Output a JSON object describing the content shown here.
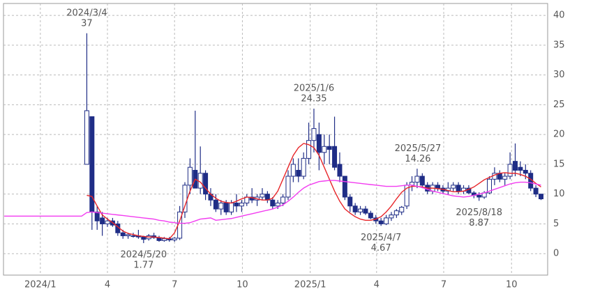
{
  "chart_data": {
    "type": "candlestick",
    "x": [
      "2023/11/13",
      "2023/11/20",
      "2023/11/27",
      "2023/12/4",
      "2023/12/11",
      "2023/12/18",
      "2023/12/25",
      "2024/1/1",
      "2024/1/8",
      "2024/1/15",
      "2024/1/22",
      "2024/1/29",
      "2024/2/5",
      "2024/2/12",
      "2024/2/19",
      "2024/2/26",
      "2024/3/4",
      "2024/3/11",
      "2024/3/18",
      "2024/3/25",
      "2024/4/1",
      "2024/4/8",
      "2024/4/15",
      "2024/4/22",
      "2024/4/29",
      "2024/5/6",
      "2024/5/13",
      "2024/5/20",
      "2024/5/27",
      "2024/6/3",
      "2024/6/10",
      "2024/6/17",
      "2024/6/24",
      "2024/7/1",
      "2024/7/8",
      "2024/7/15",
      "2024/7/22",
      "2024/7/29",
      "2024/8/5",
      "2024/8/12",
      "2024/8/19",
      "2024/8/26",
      "2024/9/2",
      "2024/9/9",
      "2024/9/16",
      "2024/9/23",
      "2024/9/30",
      "2024/10/7",
      "2024/10/14",
      "2024/10/21",
      "2024/10/28",
      "2024/11/4",
      "2024/11/11",
      "2024/11/18",
      "2024/11/25",
      "2024/12/2",
      "2024/12/9",
      "2024/12/16",
      "2024/12/23",
      "2024/12/30",
      "2025/1/6",
      "2025/1/13",
      "2025/1/20",
      "2025/1/27",
      "2025/2/3",
      "2025/2/10",
      "2025/2/17",
      "2025/2/24",
      "2025/3/3",
      "2025/3/10",
      "2025/3/17",
      "2025/3/24",
      "2025/3/31",
      "2025/4/7",
      "2025/4/14",
      "2025/4/21",
      "2025/4/28",
      "2025/5/5",
      "2025/5/12",
      "2025/5/19",
      "2025/5/26",
      "2025/6/2",
      "2025/6/9",
      "2025/6/16",
      "2025/6/23",
      "2025/6/30",
      "2025/7/7",
      "2025/7/14",
      "2025/7/21",
      "2025/7/28",
      "2025/8/4",
      "2025/8/11",
      "2025/8/18",
      "2025/8/25",
      "2025/9/1",
      "2025/9/8",
      "2025/9/15",
      "2025/9/22",
      "2025/9/29",
      "2025/10/6",
      "2025/10/13",
      "2025/10/20",
      "2025/10/27",
      "2025/11/3",
      "2025/11/10"
    ],
    "open": [
      null,
      null,
      null,
      null,
      null,
      null,
      null,
      null,
      null,
      null,
      null,
      null,
      null,
      null,
      null,
      null,
      15,
      23,
      7,
      6,
      5,
      5.5,
      5,
      3.5,
      3,
      3,
      3,
      2.8,
      2.5,
      3,
      2.7,
      2.2,
      2.5,
      2.3,
      2.6,
      7,
      11.5,
      14,
      11,
      13.5,
      10,
      9,
      7.5,
      8.5,
      7,
      8.5,
      8,
      8.5,
      9.5,
      9,
      9.5,
      10,
      9,
      8,
      8.5,
      9.5,
      13,
      14,
      13,
      16,
      19,
      20,
      17,
      18,
      18,
      15,
      13,
      9.5,
      8,
      7,
      7.5,
      6.8,
      6,
      5.5,
      5,
      6,
      6.5,
      7,
      8,
      11.5,
      12,
      13,
      11.5,
      10.5,
      11.5,
      11,
      10.5,
      11,
      11.5,
      10.5,
      11,
      10.2,
      9.8,
      9.5,
      10.2,
      12.5,
      13.5,
      12.5,
      13,
      15.5,
      14.5,
      14,
      13.5,
      11,
      10
    ],
    "high": [
      null,
      null,
      null,
      null,
      null,
      null,
      null,
      null,
      null,
      null,
      null,
      null,
      null,
      null,
      null,
      null,
      37,
      23,
      8,
      7,
      6,
      6,
      5.5,
      4,
      3.5,
      3.5,
      4,
      3,
      3.3,
      3.5,
      3,
      2.8,
      2.8,
      2.8,
      8,
      12,
      16,
      24,
      18,
      14,
      11,
      10,
      9,
      9,
      9,
      10,
      9,
      10,
      11,
      10,
      11,
      10.5,
      9.5,
      9,
      10,
      14,
      16,
      16,
      17,
      22,
      24.35,
      22,
      20,
      20,
      23,
      17,
      13,
      10,
      8.5,
      8,
      8,
      7.2,
      6.5,
      6,
      6.5,
      7,
      7.5,
      8,
      12,
      13,
      14.26,
      13.5,
      12,
      12,
      12,
      11.5,
      12,
      12,
      12,
      11.5,
      11.5,
      10.5,
      10.3,
      10.5,
      13,
      14.5,
      14,
      13.5,
      17,
      18.5,
      15.5,
      15,
      14,
      11.5,
      10
    ],
    "low": [
      null,
      null,
      null,
      null,
      null,
      null,
      null,
      null,
      null,
      null,
      null,
      null,
      null,
      null,
      null,
      null,
      15,
      4,
      4,
      3,
      4.5,
      4.5,
      3,
      2.5,
      2.5,
      2.7,
      2.5,
      1.77,
      2.2,
      2.5,
      2,
      2,
      2,
      2,
      2.3,
      6,
      10,
      11,
      10,
      9,
      8,
      7,
      6.5,
      6.5,
      6.5,
      7,
      7,
      8,
      8.5,
      8,
      9,
      8.5,
      7.5,
      7.5,
      8,
      9,
      12,
      12,
      12.5,
      15,
      17,
      14,
      15,
      15,
      14,
      12,
      9,
      7,
      6.5,
      6.5,
      6.5,
      5.8,
      5,
      4.67,
      4.8,
      5.5,
      6,
      6.5,
      7.5,
      10.5,
      11,
      11,
      10,
      10,
      10.5,
      10,
      10,
      10.5,
      10,
      10,
      10,
      9.3,
      8.87,
      9.2,
      10,
      11.5,
      12,
      11.5,
      12.5,
      13,
      13,
      12.5,
      10.5,
      9.5,
      9
    ],
    "close": [
      null,
      null,
      null,
      null,
      null,
      null,
      null,
      null,
      null,
      null,
      null,
      null,
      null,
      null,
      null,
      null,
      24,
      7,
      5.5,
      5,
      5.5,
      4.8,
      3.5,
      3,
      3.2,
      3,
      2.8,
      2.4,
      3,
      2.7,
      2.2,
      2.5,
      2.3,
      2.6,
      7,
      11.5,
      14.5,
      11,
      13.5,
      10,
      9,
      7.5,
      8.5,
      7,
      8.5,
      8,
      8.5,
      9.5,
      9,
      9.5,
      10,
      9,
      8,
      8.5,
      9.5,
      13,
      15,
      13,
      16,
      19,
      21,
      17,
      18,
      17.5,
      14.5,
      13,
      9.5,
      8,
      7,
      7.5,
      6.8,
      6,
      5.5,
      5,
      6,
      6.5,
      7.2,
      7.8,
      11.5,
      12,
      13,
      11.5,
      10.5,
      11.5,
      11,
      10.5,
      11,
      11.5,
      10.5,
      11,
      10.2,
      9.8,
      9.5,
      10.2,
      12.5,
      13.5,
      12.5,
      13,
      15,
      14,
      14,
      13.5,
      11,
      10,
      9.2
    ],
    "candle_colors": {
      "up_fill": "#ffffff",
      "up_stroke": "#1f2d86",
      "down": "#1f2d86"
    },
    "lines": [
      {
        "color": "#e8262a",
        "values": [
          null,
          null,
          null,
          null,
          null,
          null,
          null,
          null,
          null,
          null,
          null,
          null,
          null,
          null,
          null,
          null,
          9.8,
          9.6,
          8,
          6.5,
          5.8,
          5.2,
          4.5,
          3.8,
          3.4,
          3.2,
          3,
          2.9,
          2.8,
          2.8,
          2.7,
          2.6,
          2.5,
          3.5,
          5.5,
          8,
          10.5,
          12.5,
          12,
          11,
          10,
          9.3,
          8.8,
          8.6,
          8.5,
          8.8,
          9.2,
          9.5,
          9.4,
          9.2,
          9,
          9,
          9.3,
          10.5,
          12.5,
          14.5,
          16.5,
          17.8,
          18.5,
          18.3,
          17.8,
          16.5,
          14.5,
          12.5,
          10.5,
          8.8,
          7.5,
          6.8,
          6.2,
          5.8,
          5.6,
          5.6,
          5.8,
          6.2,
          7,
          8,
          9.2,
          10.3,
          11,
          11.3,
          11.3,
          11.2,
          11,
          11,
          10.9,
          10.8,
          10.6,
          10.4,
          10.4,
          10.5,
          10.8,
          11.2,
          11.8,
          12.4,
          12.8,
          13.2,
          13.5,
          13.6,
          13.5,
          13.5,
          13.3,
          13,
          12.5,
          11.8,
          11.2
        ]
      },
      {
        "color": "#f23cf0",
        "values": [
          6.3,
          6.3,
          6.3,
          6.3,
          6.3,
          6.3,
          6.3,
          6.3,
          6.3,
          6.3,
          6.3,
          6.3,
          6.3,
          6.3,
          6.3,
          6.3,
          6.9,
          7,
          6.9,
          6.8,
          6.7,
          6.6,
          6.5,
          6.4,
          6.3,
          6.2,
          6.1,
          6,
          5.9,
          5.8,
          5.6,
          5.5,
          5.3,
          5.2,
          5.1,
          5.1,
          5.2,
          5.5,
          5.8,
          5.9,
          6,
          5.6,
          5.7,
          5.8,
          5.9,
          6.1,
          6.3,
          6.5,
          6.7,
          6.9,
          7.1,
          7.3,
          7.5,
          7.8,
          8.2,
          8.8,
          9.5,
          10.3,
          11,
          11.5,
          11.8,
          12.1,
          12.2,
          12.3,
          12.3,
          12.2,
          12.1,
          12,
          11.9,
          11.8,
          11.7,
          11.6,
          11.5,
          11.4,
          11.3,
          11.3,
          11.3,
          11.4,
          11.5,
          11.5,
          11.3,
          11.1,
          10.8,
          10.5,
          10.3,
          10.1,
          9.9,
          9.7,
          9.6,
          9.5,
          9.6,
          9.8,
          10,
          10.2,
          10.5,
          10.8,
          11.1,
          11.4,
          11.7,
          11.9,
          12,
          12,
          11.9,
          11.7,
          11.5
        ]
      }
    ],
    "annotations": [
      {
        "date": "2024/3/4",
        "value": 37,
        "position": "above"
      },
      {
        "date": "2024/5/20",
        "value": 1.77,
        "position": "below"
      },
      {
        "date": "2025/1/6",
        "value": 24.35,
        "position": "above"
      },
      {
        "date": "2025/4/7",
        "value": 4.67,
        "position": "below"
      },
      {
        "date": "2025/5/27",
        "value": 14.26,
        "position": "above"
      },
      {
        "date": "2025/8/18",
        "value": 8.87,
        "position": "below"
      }
    ],
    "xlim": [
      "2023/11/12",
      "2025/11/19"
    ],
    "xticks": [
      {
        "value": "2024/1/1",
        "label": "2024/1"
      },
      {
        "value": "2024/4/1",
        "label": "4"
      },
      {
        "value": "2024/7/1",
        "label": "7"
      },
      {
        "value": "2024/10/1",
        "label": "10"
      },
      {
        "value": "2025/1/1",
        "label": "2025/1"
      },
      {
        "value": "2025/4/1",
        "label": "4"
      },
      {
        "value": "2025/7/1",
        "label": "7"
      },
      {
        "value": "2025/10/1",
        "label": "10"
      }
    ],
    "ylim": [
      -3.6,
      42
    ],
    "yticks": [
      0,
      5,
      10,
      15,
      20,
      25,
      30,
      35,
      40
    ],
    "grid": true,
    "y_axis_side": "right"
  }
}
